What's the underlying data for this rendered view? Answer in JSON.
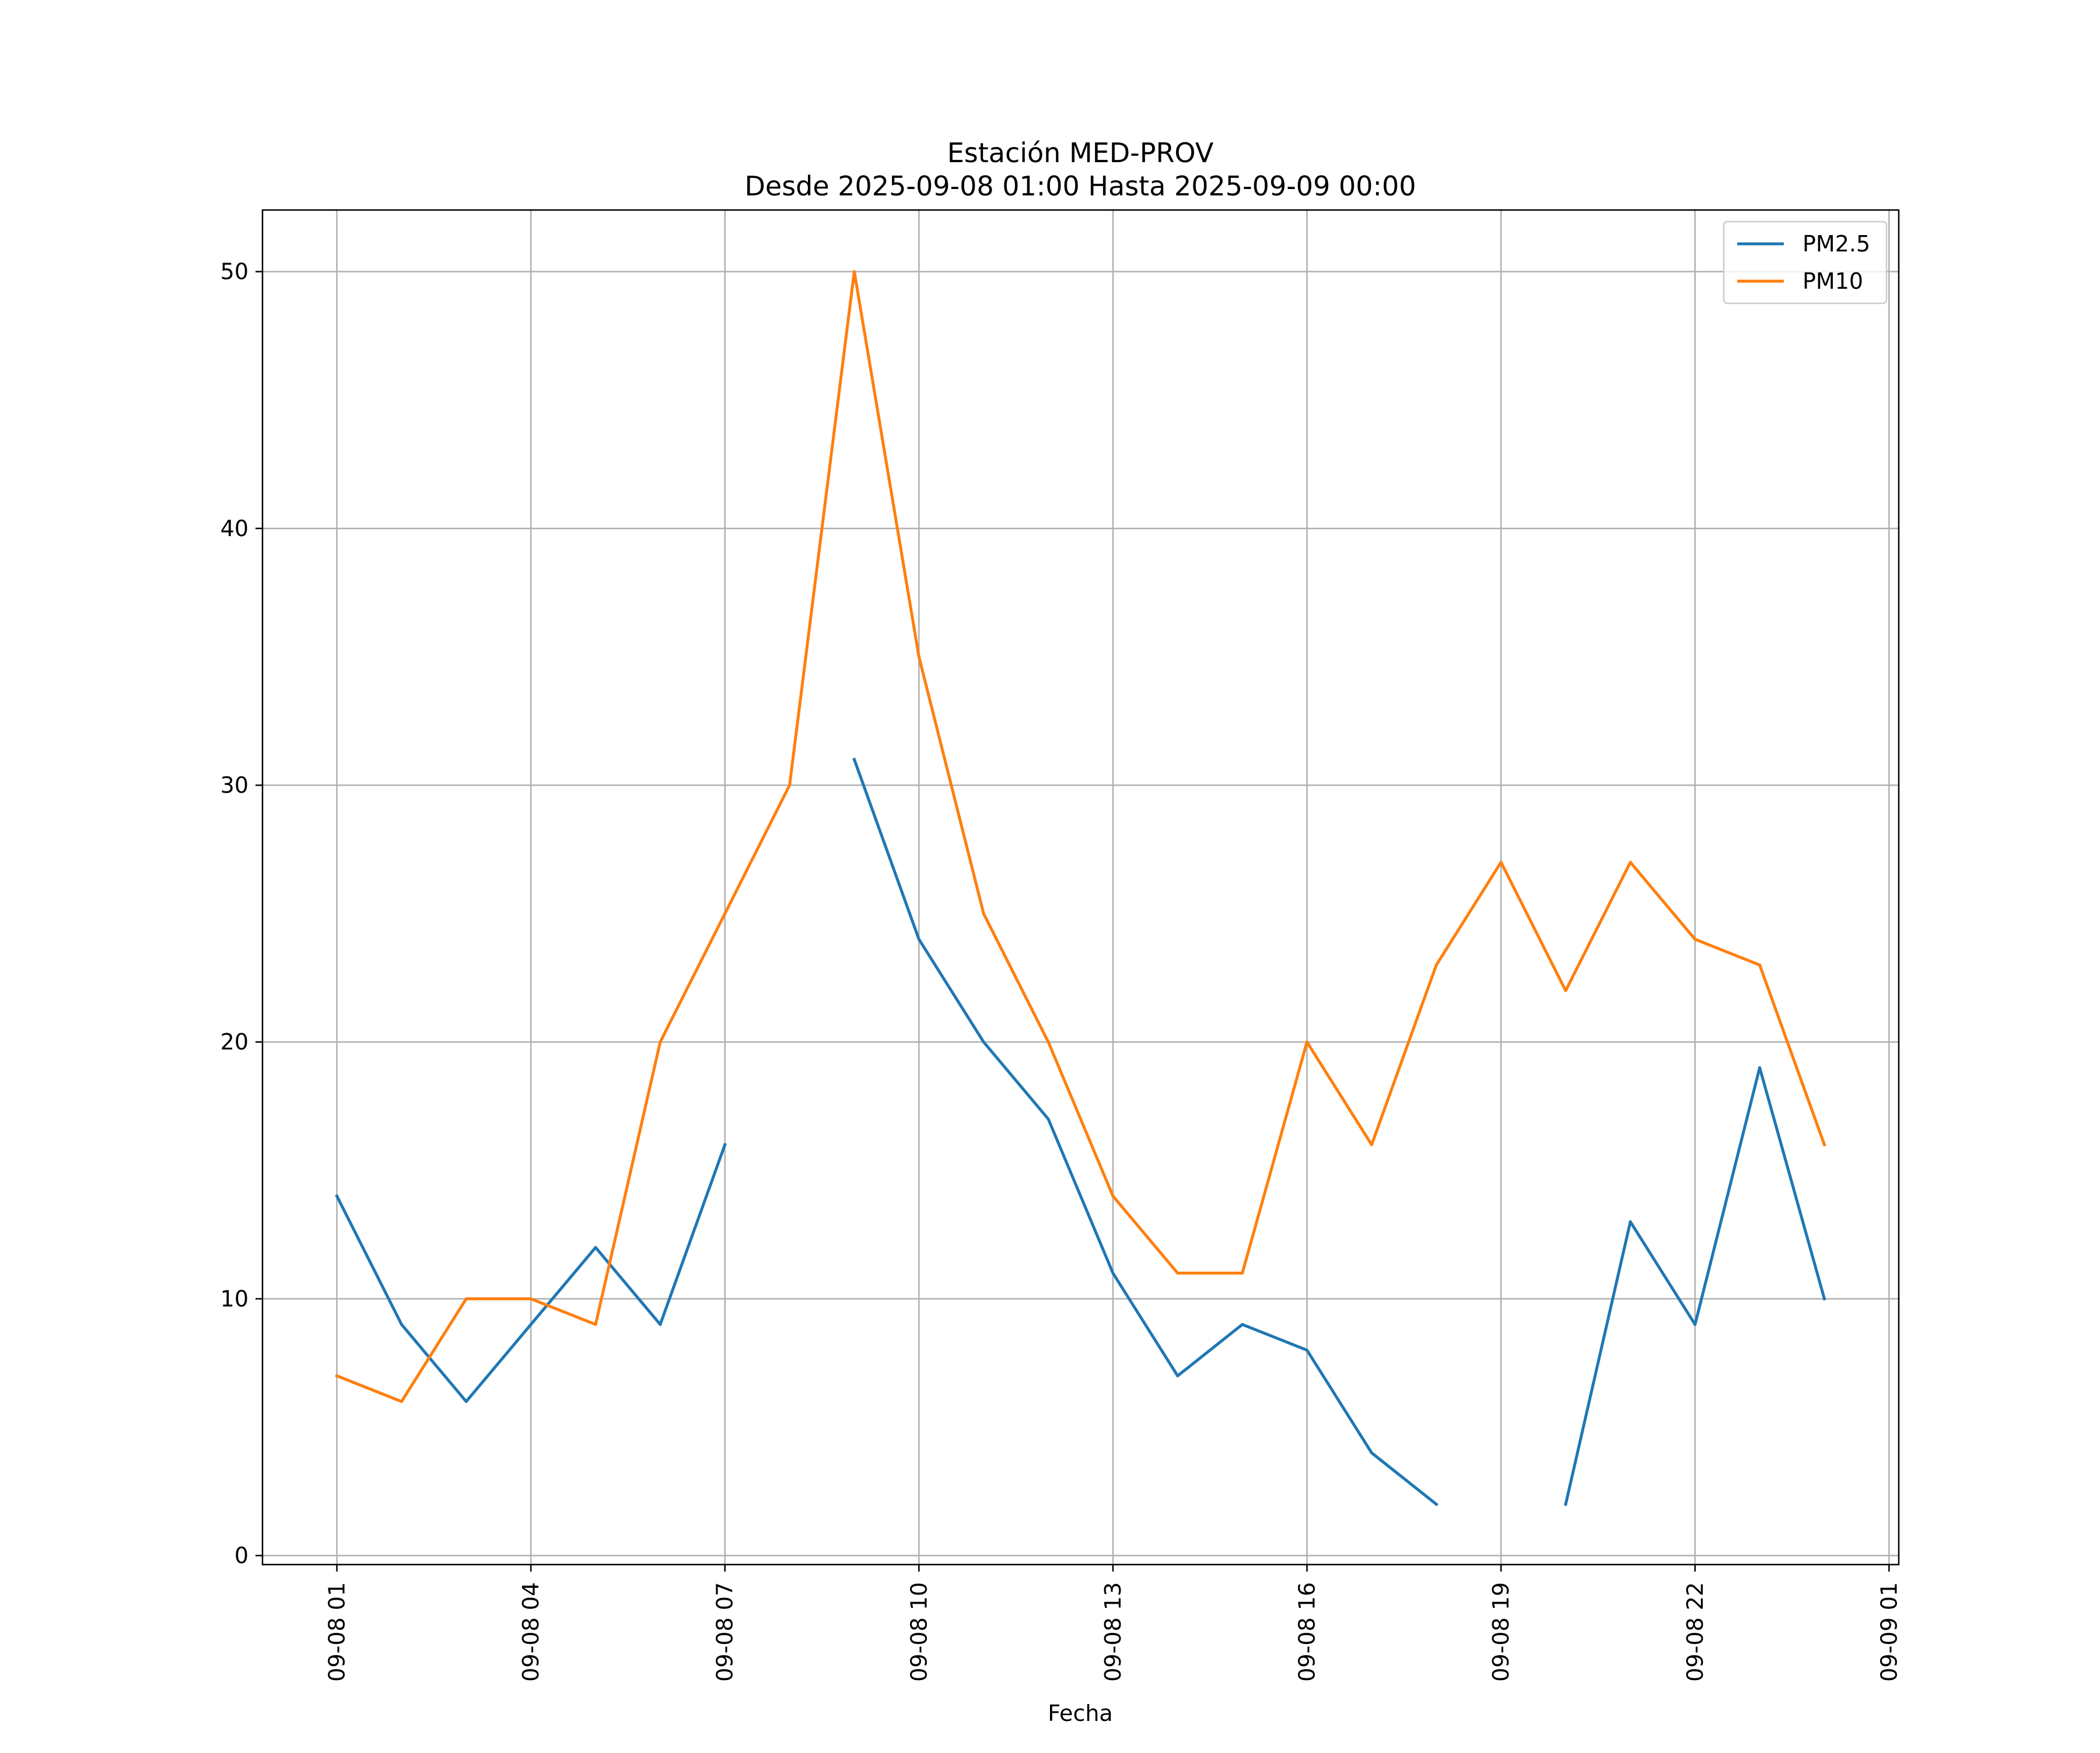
{
  "chart_data": {
    "type": "line",
    "title_lines": [
      "Estación MED-PROV",
      "Desde 2025-09-08 01:00 Hasta 2025-09-09 00:00"
    ],
    "xlabel": "Fecha",
    "ylabel": "",
    "x": [
      "2025-09-08 01:00",
      "2025-09-08 02:00",
      "2025-09-08 03:00",
      "2025-09-08 04:00",
      "2025-09-08 05:00",
      "2025-09-08 06:00",
      "2025-09-08 07:00",
      "2025-09-08 08:00",
      "2025-09-08 09:00",
      "2025-09-08 10:00",
      "2025-09-08 11:00",
      "2025-09-08 12:00",
      "2025-09-08 13:00",
      "2025-09-08 14:00",
      "2025-09-08 15:00",
      "2025-09-08 16:00",
      "2025-09-08 17:00",
      "2025-09-08 18:00",
      "2025-09-08 19:00",
      "2025-09-08 20:00",
      "2025-09-08 21:00",
      "2025-09-08 22:00",
      "2025-09-08 23:00",
      "2025-09-09 00:00"
    ],
    "series": [
      {
        "name": "PM2.5",
        "color": "#1f77b4",
        "values": [
          14,
          9,
          6,
          9,
          12,
          9,
          16,
          null,
          31,
          24,
          20,
          17,
          11,
          7,
          9,
          8,
          4,
          2,
          null,
          2,
          13,
          9,
          19,
          10
        ]
      },
      {
        "name": "PM10",
        "color": "#ff7f0e",
        "values": [
          7,
          6,
          10,
          10,
          9,
          20,
          25,
          30,
          50,
          35,
          25,
          20,
          14,
          11,
          11,
          20,
          16,
          23,
          27,
          22,
          27,
          24,
          23,
          16
        ]
      }
    ],
    "xticks": [
      {
        "value": "2025-09-08 01:00",
        "label": "09-08 01"
      },
      {
        "value": "2025-09-08 04:00",
        "label": "09-08 04"
      },
      {
        "value": "2025-09-08 07:00",
        "label": "09-08 07"
      },
      {
        "value": "2025-09-08 10:00",
        "label": "09-08 10"
      },
      {
        "value": "2025-09-08 13:00",
        "label": "09-08 13"
      },
      {
        "value": "2025-09-08 16:00",
        "label": "09-08 16"
      },
      {
        "value": "2025-09-08 19:00",
        "label": "09-08 19"
      },
      {
        "value": "2025-09-08 22:00",
        "label": "09-08 22"
      },
      {
        "value": "2025-09-09 01:00",
        "label": "09-09 01"
      }
    ],
    "yticks": [
      {
        "value": 0,
        "label": "0"
      },
      {
        "value": 10,
        "label": "10"
      },
      {
        "value": 20,
        "label": "20"
      },
      {
        "value": 30,
        "label": "30"
      },
      {
        "value": 40,
        "label": "40"
      },
      {
        "value": 50,
        "label": "50"
      }
    ],
    "xlim": [
      "2025-09-07 23:51",
      "2025-09-09 01:09"
    ],
    "ylim": [
      -0.35,
      52.4
    ],
    "grid": true,
    "legend_position": "upper-right"
  }
}
